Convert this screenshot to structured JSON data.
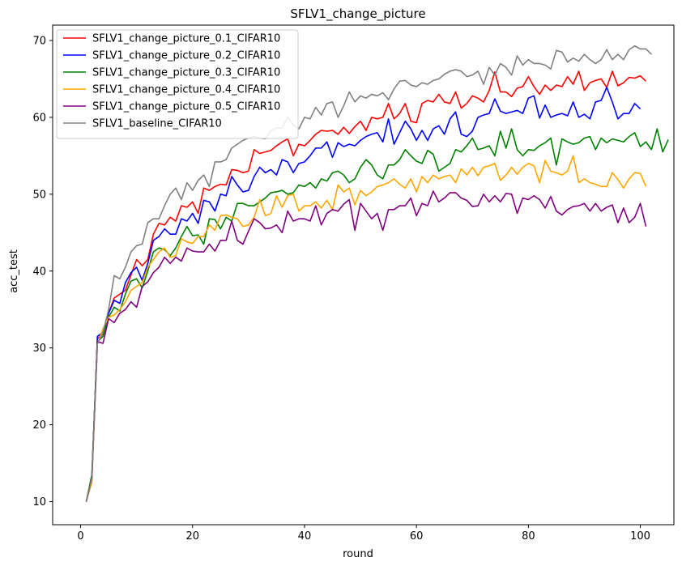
{
  "chart_data": {
    "type": "line",
    "title": "SFLV1_change_picture",
    "xlabel": "round",
    "ylabel": "acc_test",
    "xlim": [
      -5,
      106
    ],
    "ylim": [
      7,
      72
    ],
    "xticks": [
      0,
      20,
      40,
      60,
      80,
      100
    ],
    "yticks": [
      10,
      20,
      30,
      40,
      50,
      60,
      70
    ],
    "grid": false,
    "legend_position": "top-left",
    "series": [
      {
        "name": "SFLV1_change_picture_0.1_CIFAR10",
        "color": "#ff0000",
        "values": [
          10.0,
          13.0,
          31.2,
          31.8,
          34.5,
          36.5,
          37.0,
          37.5,
          39.5,
          41.5,
          40.7,
          41.5,
          44.8,
          46.2,
          46.0,
          47.0,
          46.5,
          48.5,
          48.3,
          49.0,
          47.5,
          50.8,
          50.5,
          51.0,
          51.3,
          51.2,
          53.2,
          53.1,
          52.8,
          53.0,
          55.8,
          55.3,
          55.5,
          55.7,
          56.3,
          56.8,
          57.2,
          55.0,
          56.5,
          56.3,
          57.0,
          57.8,
          58.3,
          58.2,
          58.3,
          57.8,
          58.7,
          57.9,
          58.8,
          59.5,
          58.3,
          60.0,
          59.8,
          60.0,
          61.8,
          59.8,
          60.5,
          61.8,
          59.5,
          59.3,
          61.8,
          62.2,
          62.0,
          63.0,
          62.0,
          61.8,
          63.3,
          61.2,
          61.8,
          62.8,
          62.5,
          62.0,
          63.5,
          65.9,
          63.3,
          63.3,
          62.7,
          63.8,
          64.0,
          65.3,
          64.0,
          63.0,
          64.2,
          63.5,
          64.2,
          64.0,
          65.3,
          64.3,
          66.0,
          63.5,
          64.5,
          64.8,
          65.0,
          63.9,
          66.0,
          64.1,
          64.5,
          65.2,
          65.1,
          65.4,
          64.7
        ]
      },
      {
        "name": "SFLV1_change_picture_0.2_CIFAR10",
        "color": "#0000ff",
        "values": [
          10.0,
          12.8,
          31.5,
          32.0,
          34.5,
          36.2,
          35.8,
          38.5,
          39.8,
          40.5,
          38.8,
          41.0,
          44.0,
          44.5,
          45.5,
          44.8,
          44.8,
          46.8,
          46.5,
          47.5,
          46.2,
          49.2,
          49.0,
          47.8,
          50.0,
          49.8,
          52.3,
          51.2,
          50.3,
          50.5,
          52.3,
          53.5,
          52.8,
          53.2,
          52.5,
          54.5,
          54.2,
          52.8,
          54.0,
          54.2,
          55.0,
          56.0,
          56.0,
          56.8,
          54.8,
          56.7,
          56.2,
          56.5,
          56.3,
          57.0,
          57.5,
          57.8,
          58.0,
          56.8,
          59.8,
          56.5,
          58.0,
          59.5,
          58.5,
          57.0,
          58.3,
          57.0,
          58.5,
          58.9,
          57.8,
          59.8,
          60.7,
          57.8,
          57.5,
          58.2,
          60.0,
          60.3,
          60.5,
          62.4,
          60.8,
          60.5,
          60.7,
          60.9,
          60.5,
          62.5,
          62.8,
          59.9,
          61.6,
          60.0,
          60.3,
          60.5,
          60.2,
          62.0,
          60.0,
          60.4,
          59.8,
          62.0,
          62.2,
          63.9,
          62.0,
          59.8,
          60.5,
          60.5,
          61.8,
          61.1
        ]
      },
      {
        "name": "SFLV1_change_picture_0.3_CIFAR10",
        "color": "#008000",
        "values": [
          10.0,
          13.5,
          30.8,
          31.5,
          34.0,
          35.3,
          34.8,
          37.0,
          38.7,
          39.0,
          37.8,
          40.0,
          42.5,
          43.0,
          42.8,
          42.0,
          43.0,
          44.5,
          45.8,
          44.6,
          44.7,
          43.5,
          46.8,
          46.7,
          45.5,
          47.0,
          46.5,
          48.8,
          48.8,
          48.5,
          48.5,
          49.0,
          49.5,
          50.2,
          50.3,
          50.5,
          50.0,
          50.2,
          51.2,
          51.0,
          51.5,
          50.8,
          52.0,
          51.7,
          52.8,
          53.0,
          52.5,
          51.5,
          52.0,
          53.5,
          54.5,
          53.8,
          52.5,
          52.0,
          53.8,
          53.8,
          54.5,
          55.8,
          55.0,
          54.3,
          54.0,
          55.7,
          55.2,
          53.0,
          53.5,
          54.0,
          55.8,
          55.5,
          56.3,
          57.3,
          55.8,
          56.0,
          56.3,
          55.0,
          58.2,
          56.0,
          58.5,
          55.8,
          55.0,
          55.8,
          55.7,
          56.3,
          56.7,
          57.3,
          53.8,
          57.2,
          56.8,
          56.5,
          56.7,
          57.3,
          57.5,
          55.8,
          57.3,
          56.7,
          57.2,
          57.0,
          56.8,
          57.5,
          58.0,
          56.2,
          56.8,
          55.8,
          58.5,
          55.5,
          57.1
        ]
      },
      {
        "name": "SFLV1_change_picture_0.4_CIFAR10",
        "color": "#ffa500",
        "values": [
          10.0,
          12.5,
          30.5,
          32.5,
          34.0,
          34.3,
          35.0,
          36.0,
          37.5,
          38.0,
          38.5,
          40.5,
          41.5,
          42.5,
          43.0,
          41.8,
          42.0,
          44.2,
          43.8,
          43.6,
          44.5,
          44.5,
          46.0,
          45.3,
          47.2,
          47.3,
          47.0,
          46.8,
          45.8,
          46.0,
          47.0,
          49.3,
          47.2,
          47.5,
          49.8,
          48.3,
          49.8,
          50.0,
          47.8,
          48.5,
          48.5,
          49.0,
          48.2,
          49.2,
          48.0,
          51.2,
          50.3,
          50.8,
          48.6,
          50.5,
          49.8,
          50.3,
          51.0,
          51.2,
          51.5,
          52.0,
          51.3,
          50.8,
          52.0,
          50.3,
          52.3,
          51.5,
          52.5,
          52.0,
          52.3,
          52.5,
          51.5,
          53.3,
          52.5,
          53.5,
          52.4,
          53.5,
          53.7,
          54.0,
          51.8,
          52.5,
          53.5,
          52.6,
          53.5,
          54.0,
          53.7,
          51.5,
          54.4,
          53.0,
          52.8,
          52.5,
          53.0,
          55.0,
          51.5,
          52.0,
          51.5,
          51.3,
          51.0,
          51.0,
          52.8,
          51.9,
          50.8,
          52.0,
          52.8,
          52.7,
          51.0
        ]
      },
      {
        "name": "SFLV1_change_picture_0.5_CIFAR10",
        "color": "#800080",
        "values": [
          10.0,
          13.0,
          30.8,
          30.6,
          33.8,
          33.3,
          34.5,
          35.0,
          36.0,
          35.3,
          38.0,
          38.6,
          39.8,
          40.5,
          41.8,
          41.0,
          41.8,
          41.3,
          43.0,
          42.6,
          42.5,
          42.5,
          43.5,
          42.6,
          44.0,
          44.0,
          46.5,
          44.0,
          43.5,
          45.2,
          46.8,
          46.3,
          45.5,
          45.6,
          46.0,
          45.0,
          47.8,
          46.5,
          46.8,
          46.8,
          46.5,
          48.5,
          46.0,
          47.5,
          48.0,
          47.8,
          48.7,
          49.3,
          45.3,
          48.8,
          47.8,
          46.8,
          47.5,
          45.3,
          48.0,
          48.0,
          48.5,
          48.5,
          49.5,
          47.2,
          48.8,
          48.5,
          50.4,
          49.0,
          49.5,
          50.2,
          50.2,
          49.5,
          49.2,
          48.4,
          48.5,
          50.0,
          49.0,
          49.8,
          49.0,
          50.1,
          50.0,
          47.5,
          49.5,
          49.3,
          49.8,
          49.3,
          48.2,
          49.7,
          47.8,
          47.3,
          48.0,
          48.4,
          48.5,
          48.8,
          47.8,
          48.8,
          47.8,
          48.3,
          48.6,
          46.3,
          48.2,
          46.3,
          47.0,
          48.8,
          45.8
        ]
      },
      {
        "name": "SFLV1_baseline_CIFAR10",
        "color": "#808080",
        "values": [
          10.0,
          13.0,
          30.5,
          32.0,
          35.0,
          39.4,
          39.0,
          40.5,
          42.5,
          43.3,
          43.5,
          46.3,
          46.8,
          46.8,
          48.5,
          50.0,
          50.8,
          49.3,
          51.5,
          50.5,
          51.8,
          52.5,
          51.0,
          54.2,
          54.2,
          54.5,
          56.0,
          56.5,
          57.0,
          57.3,
          57.5,
          57.3,
          57.2,
          58.3,
          58.6,
          58.6,
          60.0,
          59.0,
          58.5,
          60.0,
          59.8,
          61.3,
          60.3,
          61.8,
          62.0,
          60.0,
          61.5,
          63.3,
          62.0,
          62.8,
          62.5,
          63.0,
          62.8,
          63.2,
          62.3,
          63.7,
          64.7,
          64.8,
          64.2,
          64.0,
          64.5,
          64.3,
          64.8,
          65.0,
          65.6,
          66.0,
          66.2,
          66.0,
          65.3,
          65.5,
          66.0,
          64.3,
          66.5,
          65.5,
          67.0,
          66.5,
          65.5,
          68.0,
          66.8,
          67.5,
          67.0,
          67.0,
          66.8,
          66.3,
          68.7,
          68.5,
          67.2,
          67.7,
          67.3,
          68.2,
          67.5,
          67.0,
          67.5,
          68.8,
          67.5,
          68.2,
          67.5,
          68.8,
          69.3,
          68.9,
          68.9,
          68.2
        ]
      }
    ]
  }
}
